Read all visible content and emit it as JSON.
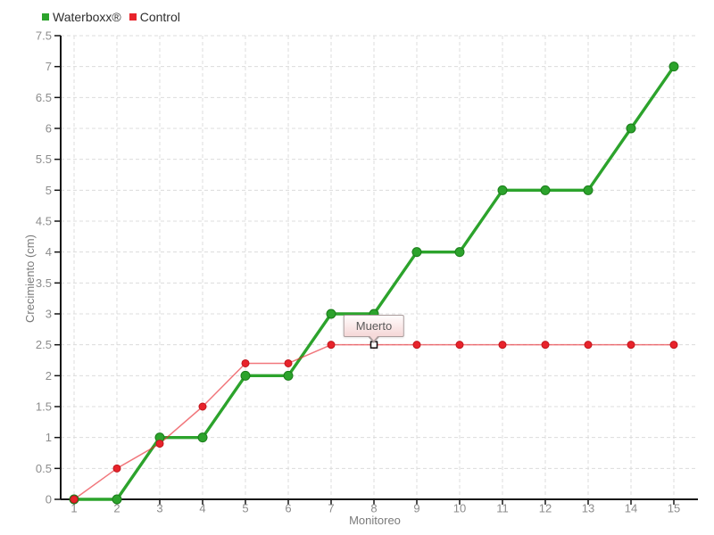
{
  "chart_data": {
    "type": "line",
    "title": "",
    "xlabel": "Monitoreo",
    "ylabel": "Crecimiento (cm)",
    "x": [
      1,
      2,
      3,
      4,
      5,
      6,
      7,
      8,
      9,
      10,
      11,
      12,
      13,
      14,
      15
    ],
    "x_ticks": [
      "1",
      "2",
      "3",
      "4",
      "5",
      "6",
      "7",
      "8",
      "9",
      "10",
      "11",
      "12",
      "13",
      "14",
      "15"
    ],
    "y_ticks": [
      "0",
      "0.5",
      "1",
      "1.5",
      "2",
      "2.5",
      "3",
      "3.5",
      "4",
      "4.5",
      "5",
      "5.5",
      "6",
      "6.5",
      "7",
      "7.5"
    ],
    "xlim": [
      1,
      15
    ],
    "ylim": [
      0,
      7.5
    ],
    "grid": "dashed-both-axes",
    "legend_position": "top-left",
    "series": [
      {
        "name": "Waterboxx®",
        "color": "#2ca32c",
        "edge_color": "#1a7d1a",
        "line_width": 3.4,
        "line_opacity": 1,
        "marker": "circle",
        "marker_radius": 5,
        "values": [
          0,
          0,
          1,
          1,
          2,
          2,
          3,
          3,
          4,
          4,
          5,
          5,
          5,
          6,
          7
        ]
      },
      {
        "name": "Control",
        "color": "#e8232b",
        "edge_color": "#c0161d",
        "line_width": 1.5,
        "line_opacity": 0.62,
        "marker": "circle",
        "marker_radius": 4,
        "values": [
          0,
          0.5,
          0.9,
          1.5,
          2.2,
          2.2,
          2.5,
          2.5,
          2.5,
          2.5,
          2.5,
          2.5,
          2.5,
          2.5,
          2.5
        ]
      }
    ],
    "annotations": [
      {
        "label": "Muerto",
        "series": "Control",
        "x": 8,
        "y": 2.5,
        "marker": "white-square-black-border"
      }
    ]
  },
  "colors": {
    "grid": "#dcdcdc",
    "axis": "#141414",
    "tick_label": "#8c8c8c",
    "axis_label": "#7a7a7a",
    "legend_text": "#2e2e2e",
    "tooltip_border": "#ab9d9d",
    "tooltip_bg": "#f6dada",
    "tooltip_text": "#5a5a5a",
    "background": "#ffffff"
  }
}
